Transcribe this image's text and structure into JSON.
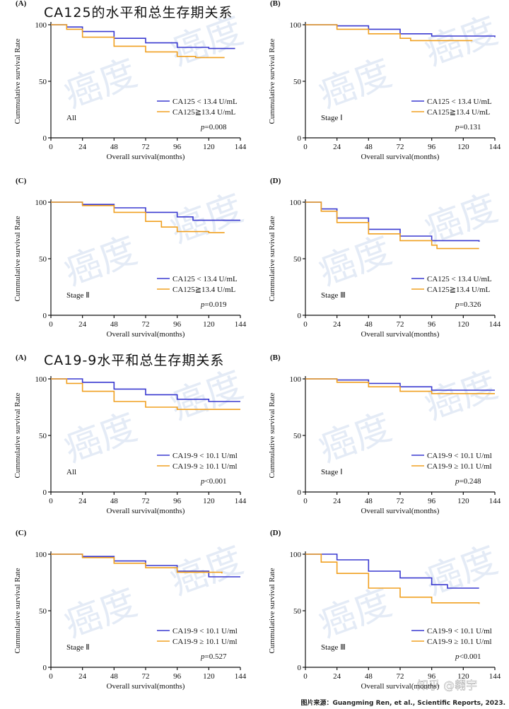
{
  "headings": [
    "CA125的水平和总生存期关系",
    "CA19-9水平和总生存期关系"
  ],
  "source": "图片来源：Guangming Ren, et al., Scientific Reports, 2023.",
  "watermark": "癌度",
  "platform_watermark": "知乎 @翱宇",
  "chart_data": [
    {
      "type": "line",
      "step": true,
      "panel": "(A)",
      "ylabel": "Cummulative survival Rate",
      "xlabel": "Overall survival(months)",
      "xlim": [
        0,
        144
      ],
      "xticks": [
        0,
        24,
        48,
        72,
        96,
        120,
        144
      ],
      "ylim": [
        0,
        100
      ],
      "yticks": [
        0,
        50,
        100
      ],
      "annotation": "All",
      "p_symbol": "p",
      "p_value": "=0.008",
      "series": [
        {
          "name": "CA125 < 13.4 U/mL",
          "color": "#3a3ad0",
          "x": [
            0,
            12,
            24,
            48,
            72,
            96,
            120,
            140
          ],
          "values": [
            100,
            98,
            94,
            88,
            84,
            80,
            79,
            79
          ]
        },
        {
          "name": "CA125≧13.4 U/mL",
          "color": "#f0a020",
          "x": [
            0,
            12,
            24,
            48,
            72,
            96,
            110,
            132
          ],
          "values": [
            100,
            96,
            89,
            81,
            76,
            72,
            71,
            71
          ]
        }
      ]
    },
    {
      "type": "line",
      "step": true,
      "panel": "(B)",
      "ylabel": "Cummulative survival Rate",
      "xlabel": "Overall survival(months)",
      "xlim": [
        0,
        144
      ],
      "xticks": [
        0,
        24,
        48,
        72,
        96,
        120,
        144
      ],
      "ylim": [
        0,
        100
      ],
      "yticks": [
        0,
        50,
        100
      ],
      "annotation": "Stage Ⅰ",
      "p_symbol": "p",
      "p_value": "=0.131",
      "series": [
        {
          "name": "CA125 < 13.4 U/mL",
          "color": "#3a3ad0",
          "x": [
            0,
            24,
            48,
            72,
            96,
            144
          ],
          "values": [
            100,
            99,
            96,
            92,
            90,
            89
          ]
        },
        {
          "name": "CA125≧13.4 U/mL",
          "color": "#f0a020",
          "x": [
            0,
            24,
            48,
            72,
            80,
            127
          ],
          "values": [
            100,
            96,
            92,
            88,
            86,
            86
          ]
        }
      ]
    },
    {
      "type": "line",
      "step": true,
      "panel": "(C)",
      "ylabel": "Cummulative survival Rate",
      "xlabel": "Overall survival(months)",
      "xlim": [
        0,
        144
      ],
      "xticks": [
        0,
        24,
        48,
        72,
        96,
        120,
        144
      ],
      "ylim": [
        0,
        100
      ],
      "yticks": [
        0,
        50,
        100
      ],
      "annotation": "Stage Ⅱ",
      "p_symbol": "p",
      "p_value": "=0.019",
      "series": [
        {
          "name": "CA125 < 13.4 U/mL",
          "color": "#3a3ad0",
          "x": [
            0,
            24,
            48,
            72,
            96,
            108,
            144
          ],
          "values": [
            100,
            98,
            95,
            91,
            87,
            84,
            84
          ]
        },
        {
          "name": "CA125≧13.4 U/mL",
          "color": "#f0a020",
          "x": [
            0,
            24,
            48,
            72,
            84,
            96,
            120,
            132
          ],
          "values": [
            100,
            97,
            91,
            83,
            78,
            74,
            73,
            73
          ]
        }
      ]
    },
    {
      "type": "line",
      "step": true,
      "panel": "(D)",
      "ylabel": "Cummulative survival Rate",
      "xlabel": "Overall survival(months)",
      "xlim": [
        0,
        144
      ],
      "xticks": [
        0,
        24,
        48,
        72,
        96,
        120,
        144
      ],
      "ylim": [
        0,
        100
      ],
      "yticks": [
        0,
        50,
        100
      ],
      "annotation": "Stage Ⅲ",
      "p_symbol": "p",
      "p_value": "=0.326",
      "series": [
        {
          "name": "CA125 < 13.4 U/mL",
          "color": "#3a3ad0",
          "x": [
            0,
            12,
            24,
            48,
            72,
            96,
            132
          ],
          "values": [
            100,
            94,
            86,
            76,
            70,
            66,
            65
          ]
        },
        {
          "name": "CA125≧13.4 U/mL",
          "color": "#f0a020",
          "x": [
            0,
            12,
            24,
            48,
            72,
            96,
            100,
            132
          ],
          "values": [
            100,
            92,
            82,
            72,
            66,
            62,
            59,
            59
          ]
        }
      ]
    },
    {
      "type": "line",
      "step": true,
      "panel": "(A)",
      "ylabel": "Cummulative survival Rate",
      "xlabel": "Overall survival(months)",
      "xlim": [
        0,
        144
      ],
      "xticks": [
        0,
        24,
        48,
        72,
        96,
        120,
        144
      ],
      "ylim": [
        0,
        100
      ],
      "yticks": [
        0,
        50,
        100
      ],
      "annotation": "All",
      "p_symbol": "p",
      "p_value": "<0.001",
      "series": [
        {
          "name": "CA19-9 < 10.1 U/ml",
          "color": "#3a3ad0",
          "x": [
            0,
            24,
            48,
            72,
            96,
            120,
            144
          ],
          "values": [
            100,
            97,
            91,
            86,
            82,
            80,
            80
          ]
        },
        {
          "name": "CA19-9 ≥ 10.1 U/ml",
          "color": "#f0a020",
          "x": [
            0,
            12,
            24,
            48,
            72,
            96,
            144
          ],
          "values": [
            100,
            96,
            89,
            80,
            75,
            73,
            73
          ]
        }
      ]
    },
    {
      "type": "line",
      "step": true,
      "panel": "(B)",
      "ylabel": "Cummulative survival Rate",
      "xlabel": "Overall survival(months)",
      "xlim": [
        0,
        144
      ],
      "xticks": [
        0,
        24,
        48,
        72,
        96,
        120,
        144
      ],
      "ylim": [
        0,
        100
      ],
      "yticks": [
        0,
        50,
        100
      ],
      "annotation": "Stage Ⅰ",
      "p_symbol": "p",
      "p_value": "=0.248",
      "series": [
        {
          "name": "CA19-9 < 10.1 U/ml",
          "color": "#3a3ad0",
          "x": [
            0,
            24,
            48,
            72,
            96,
            144
          ],
          "values": [
            100,
            99,
            96,
            93,
            90,
            90
          ]
        },
        {
          "name": "CA19-9 ≥ 10.1 U/ml",
          "color": "#f0a020",
          "x": [
            0,
            24,
            48,
            72,
            96,
            144
          ],
          "values": [
            100,
            97,
            93,
            89,
            87,
            87
          ]
        }
      ]
    },
    {
      "type": "line",
      "step": true,
      "panel": "(C)",
      "ylabel": "Cummulative survival Rate",
      "xlabel": "Overall survival(months)",
      "xlim": [
        0,
        144
      ],
      "xticks": [
        0,
        24,
        48,
        72,
        96,
        120,
        144
      ],
      "ylim": [
        0,
        100
      ],
      "yticks": [
        0,
        50,
        100
      ],
      "annotation": "Stage Ⅱ",
      "p_symbol": "p",
      "p_value": "=0.527",
      "series": [
        {
          "name": "CA19-9 < 10.1 U/ml",
          "color": "#3a3ad0",
          "x": [
            0,
            24,
            48,
            72,
            96,
            120,
            144
          ],
          "values": [
            100,
            98,
            94,
            90,
            85,
            80,
            80
          ]
        },
        {
          "name": "CA19-9 ≥ 10.1 U/ml",
          "color": "#f0a020",
          "x": [
            0,
            24,
            48,
            72,
            96,
            130
          ],
          "values": [
            100,
            97,
            92,
            88,
            84,
            83
          ]
        }
      ]
    },
    {
      "type": "line",
      "step": true,
      "panel": "(D)",
      "ylabel": "Cummulative survival Rate",
      "xlabel": "Overall survival(months)",
      "xlim": [
        0,
        144
      ],
      "xticks": [
        0,
        24,
        48,
        72,
        96,
        120,
        144
      ],
      "ylim": [
        0,
        100
      ],
      "yticks": [
        0,
        50,
        100
      ],
      "annotation": "Stage Ⅲ",
      "p_symbol": "p",
      "p_value": "<0.001",
      "series": [
        {
          "name": "CA19-9 < 10.1 U/ml",
          "color": "#3a3ad0",
          "x": [
            0,
            24,
            48,
            72,
            96,
            108,
            132
          ],
          "values": [
            100,
            95,
            85,
            79,
            73,
            70,
            70
          ]
        },
        {
          "name": "CA19-9 ≥ 10.1 U/ml",
          "color": "#f0a020",
          "x": [
            0,
            12,
            24,
            48,
            72,
            96,
            132
          ],
          "values": [
            100,
            93,
            83,
            70,
            62,
            57,
            56
          ]
        }
      ]
    }
  ]
}
